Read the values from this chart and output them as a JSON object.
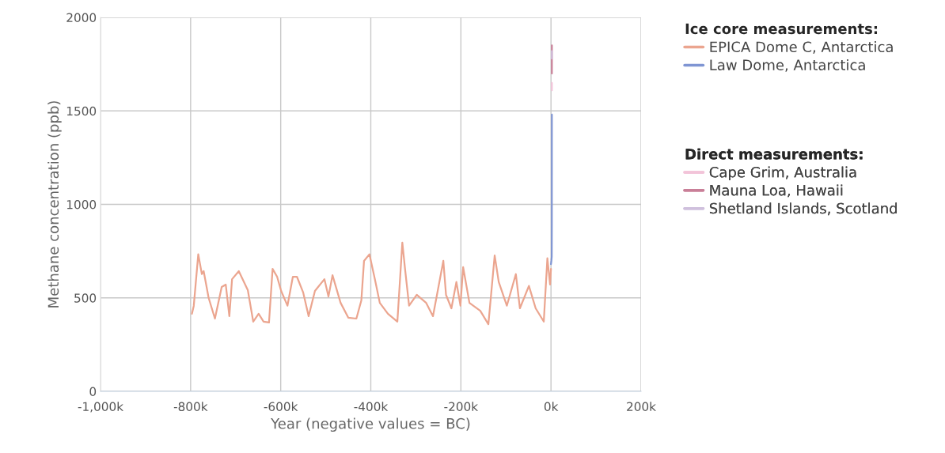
{
  "chart_data": {
    "type": "line",
    "xlabel": "Year (negative values = BC)",
    "ylabel": "Methane concentration (ppb)",
    "xlim": [
      -1000000,
      200000
    ],
    "xticks": [
      {
        "value": -1000000,
        "label": "-1,000k"
      },
      {
        "value": -800000,
        "label": "-800k"
      },
      {
        "value": -600000,
        "label": "-600k"
      },
      {
        "value": -400000,
        "label": "-400k"
      },
      {
        "value": -200000,
        "label": "-200k"
      },
      {
        "value": 0,
        "label": "0k"
      },
      {
        "value": 200000,
        "label": "200k"
      }
    ],
    "ylim": [
      0,
      2000
    ],
    "yticks": [
      0,
      500,
      1000,
      1500,
      2000
    ],
    "grid": true,
    "legend": "top right",
    "marker": "none",
    "line_style": "solid",
    "annotations": [
      "Ice core measurements:",
      "Direct measurements:"
    ],
    "series": [
      {
        "name": "EPICA Dome C, Antarctica",
        "color": "#eba58f",
        "x": [
          -797000,
          -793000,
          -783000,
          -775000,
          -771000,
          -760000,
          -746000,
          -731000,
          -722000,
          -714000,
          -708000,
          -693000,
          -673000,
          -661000,
          -649000,
          -638000,
          -626000,
          -618000,
          -608000,
          -599000,
          -585000,
          -573000,
          -564000,
          -550000,
          -538000,
          -524000,
          -503000,
          -494000,
          -485000,
          -467000,
          -450000,
          -432000,
          -421000,
          -415000,
          -403000,
          -391000,
          -380000,
          -362000,
          -341000,
          -330000,
          -324000,
          -315000,
          -298000,
          -277000,
          -262000,
          -239000,
          -233000,
          -221000,
          -210000,
          -201000,
          -195000,
          -181000,
          -157000,
          -139000,
          -125000,
          -116000,
          -98000,
          -78000,
          -69000,
          -49000,
          -34000,
          -16000,
          -8000,
          -2000,
          0
        ],
        "values": [
          415,
          457,
          733,
          627,
          643,
          500,
          389,
          558,
          571,
          402,
          600,
          643,
          541,
          373,
          415,
          373,
          368,
          655,
          613,
          537,
          458,
          613,
          613,
          528,
          402,
          537,
          600,
          507,
          621,
          473,
          394,
          389,
          486,
          698,
          733,
          600,
          473,
          415,
          373,
          796,
          655,
          458,
          516,
          473,
          402,
          698,
          516,
          444,
          585,
          458,
          664,
          473,
          431,
          359,
          727,
          585,
          458,
          627,
          444,
          564,
          444,
          373,
          712,
          571,
          655
        ]
      },
      {
        "name": "Law Dome, Antarctica",
        "color": "#7f95d3",
        "x": [
          0,
          1000,
          1700,
          1900,
          1980
        ],
        "values": [
          680,
          700,
          720,
          900,
          1480
        ]
      },
      {
        "name": "Cape Grim, Australia",
        "color": "#f2c4d9",
        "x": [
          1984,
          1995
        ],
        "values": [
          1610,
          1650
        ]
      },
      {
        "name": "Mauna Loa, Hawaii",
        "color": "#c97f98",
        "x": [
          1984,
          1995,
          2005,
          2018
        ],
        "values": [
          1700,
          1760,
          1790,
          1850
        ]
      },
      {
        "name": "Shetland Islands, Scotland",
        "color": "#cfc0dd",
        "x": [
          1993,
          2000,
          2010
        ],
        "values": [
          1780,
          1800,
          1820
        ]
      }
    ]
  }
}
